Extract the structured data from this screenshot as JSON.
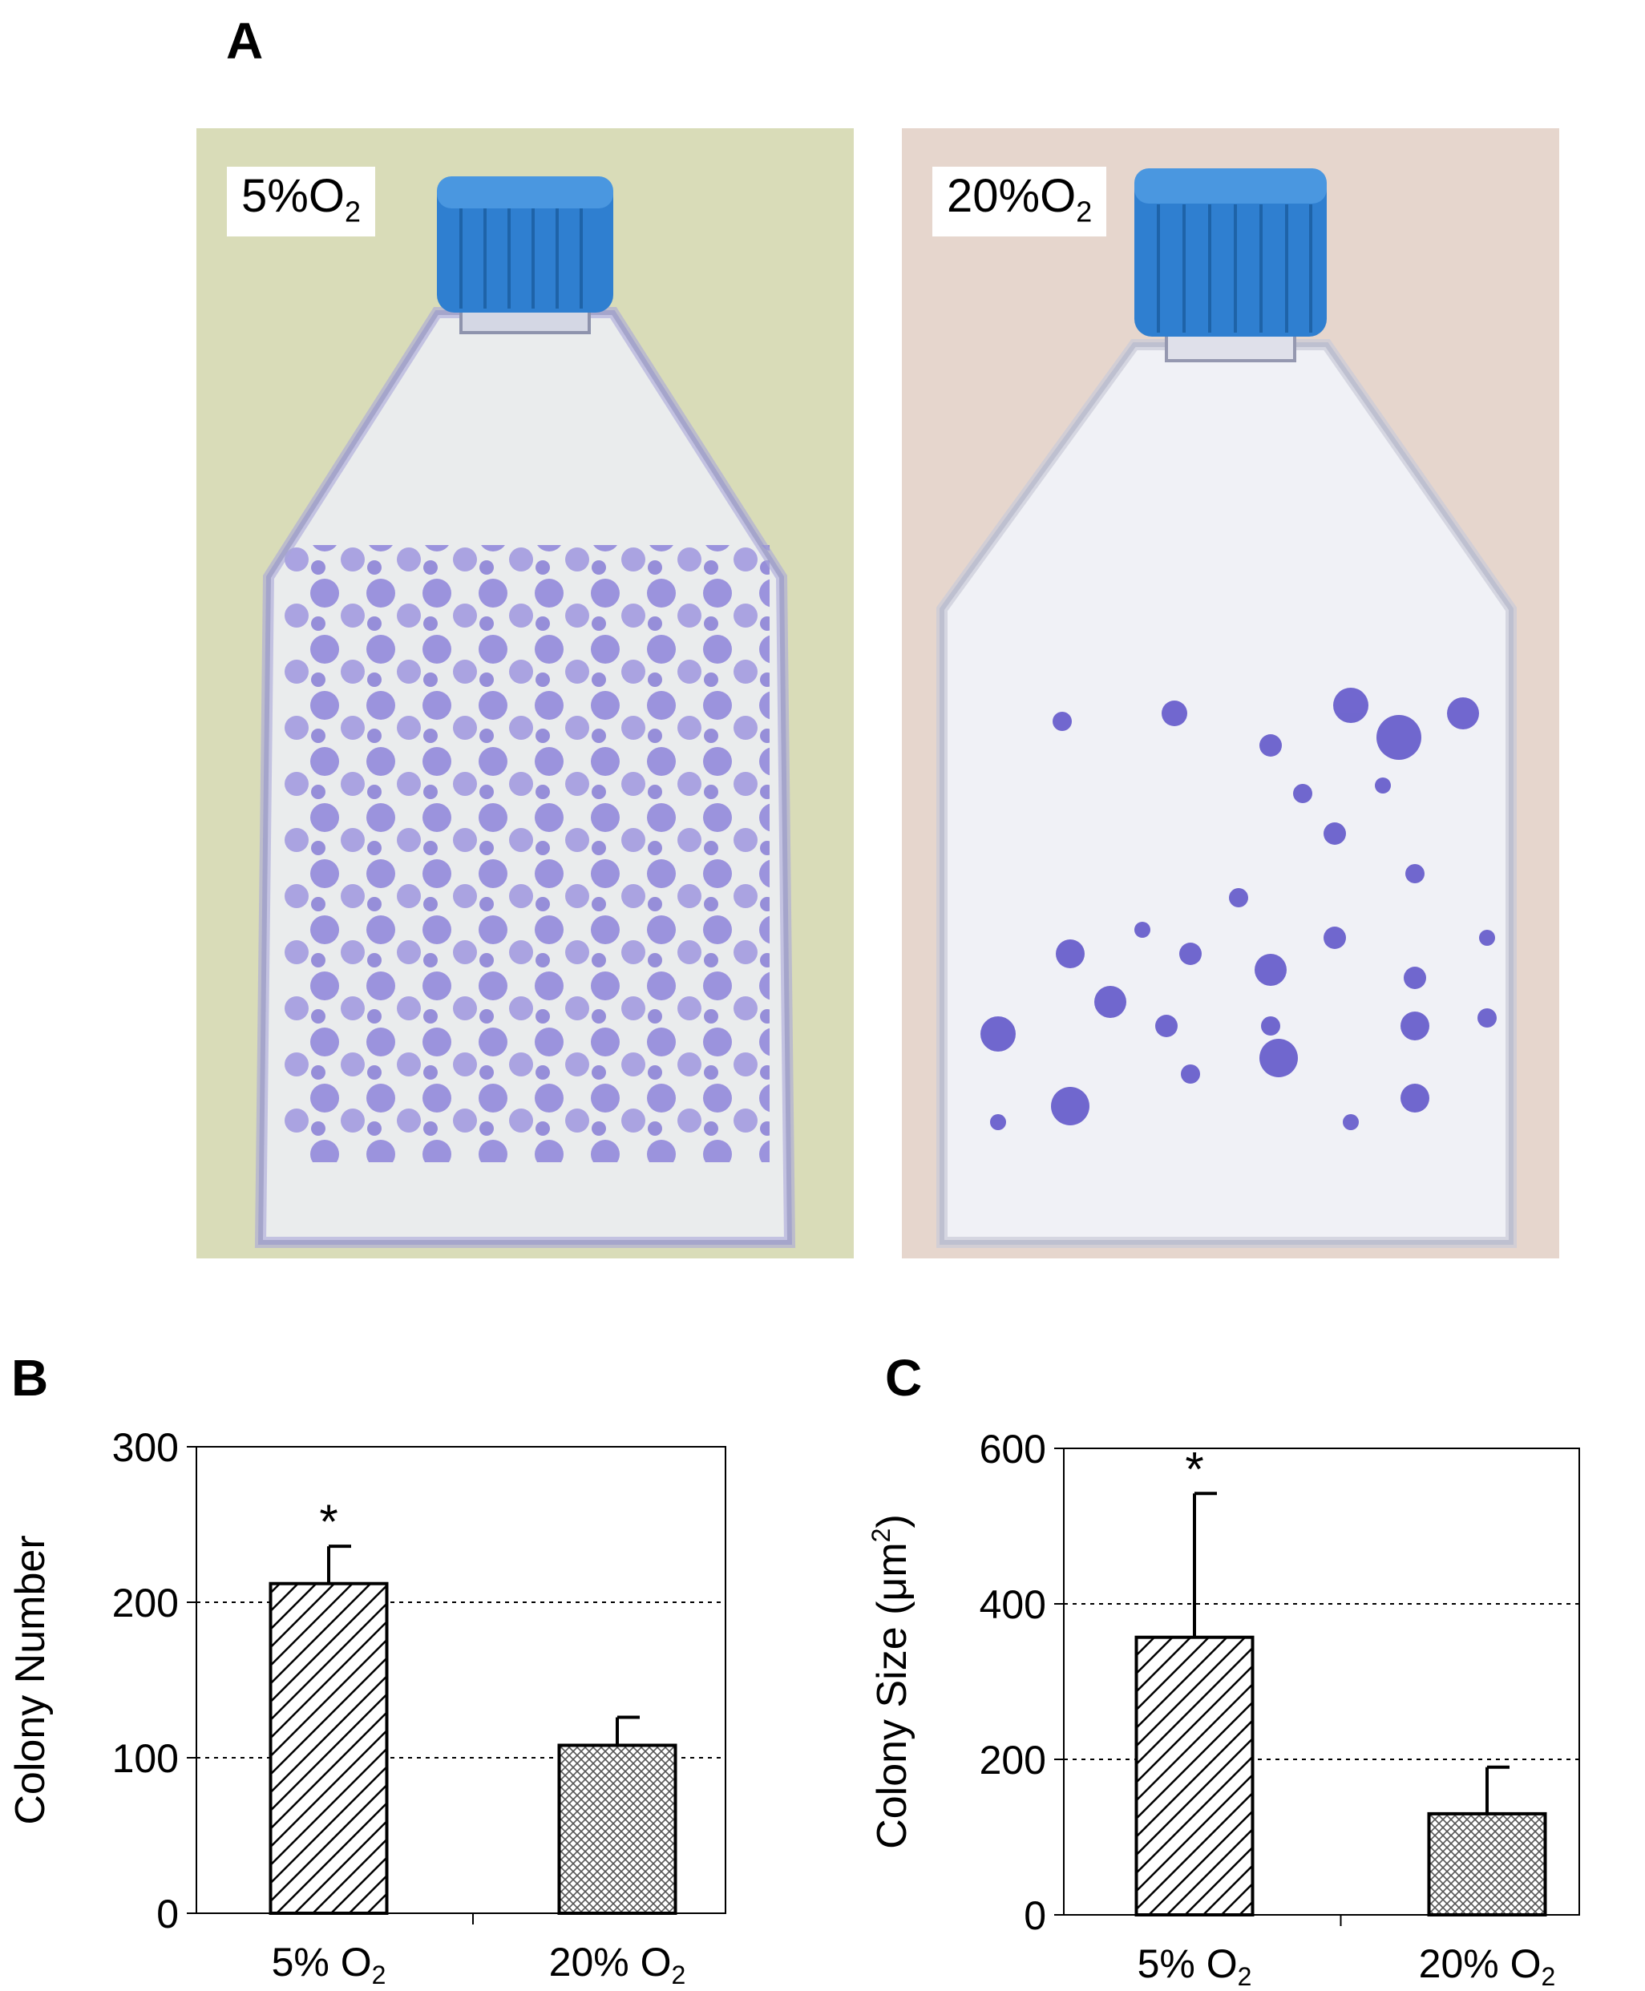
{
  "panels": {
    "A": "A",
    "B": "B",
    "C": "C"
  },
  "photos": [
    {
      "label_main": "5%O",
      "label_sub": "2",
      "bg_color": "#d9dcb8",
      "stain_color": "#7b6fd6",
      "cap_color": "#2f7fd0"
    },
    {
      "label_main": "20%O",
      "label_sub": "2",
      "bg_color": "#e6d6cd",
      "stain_color": "#5a4fc8",
      "cap_color": "#2f7fd0"
    }
  ],
  "chart_data": [
    {
      "type": "bar",
      "categories": [
        "5% O2",
        "20% O2"
      ],
      "category_labels": [
        {
          "main": "5% O",
          "sub": "2"
        },
        {
          "main": "20% O",
          "sub": "2"
        }
      ],
      "values": [
        212,
        108
      ],
      "errors": [
        24,
        18
      ],
      "significance": [
        "*",
        ""
      ],
      "ylabel": "Colony Number",
      "ylim": [
        0,
        300
      ],
      "yticks": [
        0,
        100,
        200,
        300
      ],
      "grid": "dashed-horizontal",
      "patterns": [
        "diagonal-hatch",
        "crosshatch"
      ]
    },
    {
      "type": "bar",
      "categories": [
        "5% O2",
        "20% O2"
      ],
      "category_labels": [
        {
          "main": "5% O",
          "sub": "2"
        },
        {
          "main": "20% O",
          "sub": "2"
        }
      ],
      "values": [
        357,
        130
      ],
      "errors": [
        185,
        60
      ],
      "significance": [
        "*",
        ""
      ],
      "ylabel_main": "Colony Size (μm",
      "ylabel_sup": "2",
      "ylabel_end": ")",
      "ylim": [
        0,
        600
      ],
      "yticks": [
        0,
        200,
        400,
        600
      ],
      "grid": "dashed-horizontal",
      "patterns": [
        "diagonal-hatch",
        "crosshatch"
      ]
    }
  ]
}
